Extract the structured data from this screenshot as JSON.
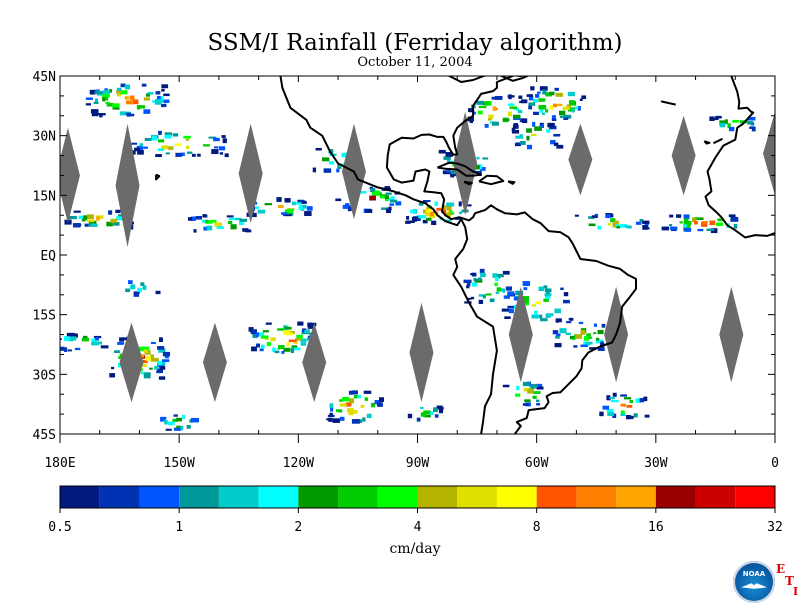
{
  "title": "SSM/I Rainfall (Ferriday algorithm)",
  "subtitle": "October 11, 2004",
  "map": {
    "lon_range": [
      -180,
      0
    ],
    "lat_range": [
      -45,
      45
    ],
    "lat_labels": [
      "45N",
      "30N",
      "15N",
      "EQ",
      "15S",
      "30S",
      "45S"
    ],
    "lon_labels": [
      "180E",
      "150W",
      "120W",
      "90W",
      "60W",
      "30W",
      "0"
    ],
    "lat_values": [
      45,
      30,
      15,
      0,
      -15,
      -30,
      -45
    ],
    "lon_values": [
      -180,
      -150,
      -120,
      -90,
      -60,
      -30,
      0
    ]
  },
  "colorbar": {
    "colors": [
      "#001a80",
      "#0033b3",
      "#0055ff",
      "#009999",
      "#00cccc",
      "#00ffff",
      "#009900",
      "#00cc00",
      "#00ff00",
      "#b3b300",
      "#e0e000",
      "#ffff00",
      "#ff5500",
      "#ff8000",
      "#ffa500",
      "#990000",
      "#cc0000",
      "#ff0000"
    ],
    "tick_labels": [
      "0.5",
      "1",
      "2",
      "4",
      "8",
      "16",
      "32"
    ],
    "units": "cm/day"
  },
  "logo": {
    "text": "NOAA",
    "eti_letters": [
      "E",
      "T",
      "I"
    ]
  }
}
